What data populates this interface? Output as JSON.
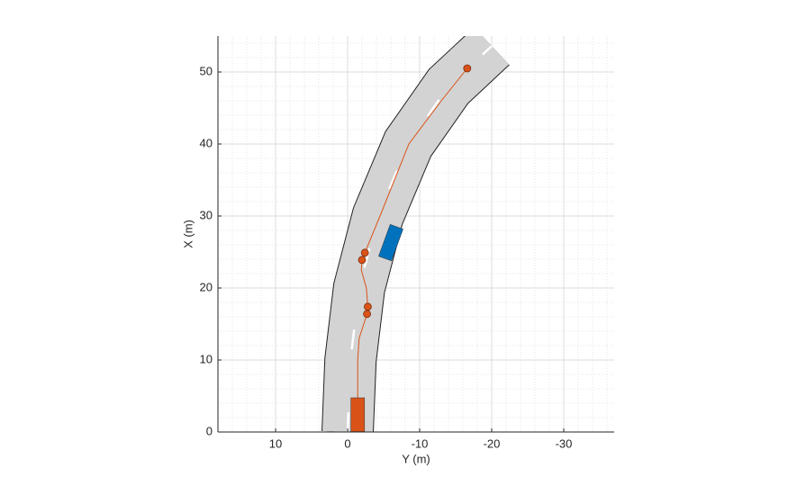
{
  "chart_data": {
    "type": "driving-scenario",
    "xlabel": "Y (m)",
    "ylabel": "X (m)",
    "xlim": [
      18,
      -37
    ],
    "xticks": [
      10,
      0,
      -10,
      -20,
      -30
    ],
    "ylim": [
      0,
      55
    ],
    "yticks": [
      0,
      10,
      20,
      30,
      40,
      50
    ],
    "grid": true,
    "minor_grid": true,
    "road": {
      "color": "#d3d3d3",
      "x": [
        0,
        -0.4,
        -1.6,
        -4.2,
        -8.4,
        -14,
        -20
      ],
      "values": [
        0,
        10,
        20,
        30,
        40,
        48,
        53.6
      ]
    },
    "trajectory": {
      "color": "#d95319",
      "x": [
        -1.4,
        -1.4,
        -1.6,
        -2.7,
        -2.8,
        -2.6,
        -1.9,
        -2.0,
        -2.4,
        -4.5,
        -8.5,
        -13,
        -16.6
      ],
      "values": [
        2.5,
        10,
        13,
        16.4,
        17.4,
        20,
        22.5,
        23.9,
        24.9,
        30,
        40,
        46,
        50.5
      ]
    },
    "waypoints": {
      "color": "#d95319",
      "x": [
        -2.7,
        -2.8,
        -2.0,
        -2.4,
        -16.6
      ],
      "values": [
        16.4,
        17.4,
        23.9,
        24.9,
        50.5
      ]
    },
    "vehicles": [
      {
        "color": "#d95319",
        "x": -1.4,
        "values": 2.4,
        "heading": 0
      },
      {
        "color": "#0072bd",
        "x": -6.0,
        "values": 26.3,
        "heading": -20
      }
    ]
  }
}
